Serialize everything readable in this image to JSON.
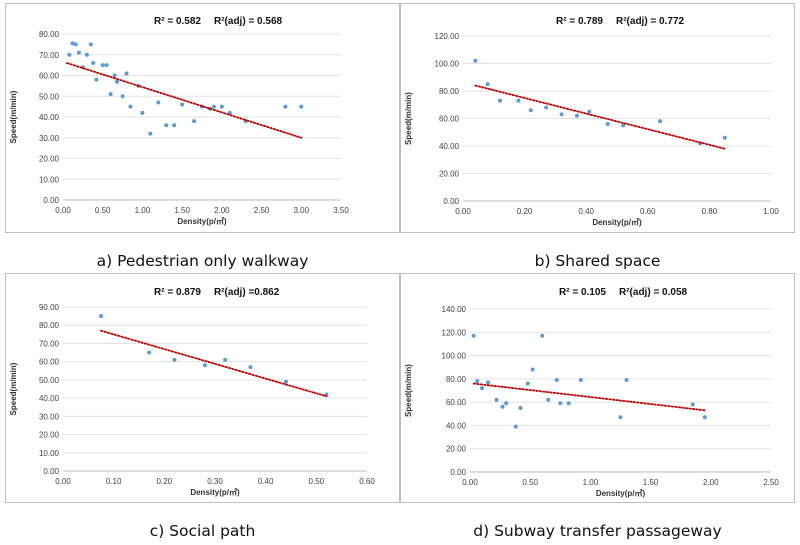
{
  "chart_data": [
    {
      "type": "scatter",
      "caption": "a)  Pedestrian only walkway",
      "r2": "R² = 0.582",
      "r2adj": "R²(adj) = 0.568",
      "xlabel": "Density(p/㎡)",
      "ylabel": "Speed(m/min)",
      "xlim": [
        0,
        3.5
      ],
      "ylim": [
        0,
        80
      ],
      "xticks": [
        "0.00",
        "0.50",
        "1.00",
        "1.50",
        "2.00",
        "2.50",
        "3.00",
        "3.50"
      ],
      "yticks": [
        "0.00",
        "10.00",
        "20.00",
        "30.00",
        "40.00",
        "50.00",
        "60.00",
        "70.00",
        "80.00"
      ],
      "xtick_values": [
        0,
        0.5,
        1,
        1.5,
        2,
        2.5,
        3,
        3.5
      ],
      "ytick_values": [
        0,
        10,
        20,
        30,
        40,
        50,
        60,
        70,
        80
      ],
      "points": [
        [
          0.08,
          70
        ],
        [
          0.12,
          75.5
        ],
        [
          0.16,
          75
        ],
        [
          0.2,
          71
        ],
        [
          0.25,
          64
        ],
        [
          0.3,
          70
        ],
        [
          0.35,
          75
        ],
        [
          0.38,
          66
        ],
        [
          0.42,
          58
        ],
        [
          0.5,
          65
        ],
        [
          0.55,
          65
        ],
        [
          0.6,
          51
        ],
        [
          0.65,
          60
        ],
        [
          0.68,
          57
        ],
        [
          0.75,
          50
        ],
        [
          0.8,
          61
        ],
        [
          0.85,
          45
        ],
        [
          0.95,
          55
        ],
        [
          1.0,
          42
        ],
        [
          1.1,
          32
        ],
        [
          1.2,
          47
        ],
        [
          1.3,
          36
        ],
        [
          1.4,
          36
        ],
        [
          1.5,
          46
        ],
        [
          1.65,
          38
        ],
        [
          1.75,
          45
        ],
        [
          1.85,
          44
        ],
        [
          1.9,
          45
        ],
        [
          2.0,
          45
        ],
        [
          2.1,
          42
        ],
        [
          2.3,
          38
        ],
        [
          2.8,
          45
        ],
        [
          3.0,
          45
        ]
      ],
      "trend": [
        [
          0.05,
          66
        ],
        [
          3.0,
          30
        ]
      ]
    },
    {
      "type": "scatter",
      "caption": "b)  Shared space",
      "r2": "R² = 0.789",
      "r2adj": "R²(adj) = 0.772",
      "xlabel": "Density(p/㎡)",
      "ylabel": "Speed(m/min)",
      "xlim": [
        0,
        1
      ],
      "ylim": [
        0,
        120
      ],
      "xticks": [
        "0.00",
        "0.20",
        "0.40",
        "0.60",
        "0.80",
        "1.00"
      ],
      "yticks": [
        "0.00",
        "20.00",
        "40.00",
        "60.00",
        "80.00",
        "100.00",
        "120.00"
      ],
      "xtick_values": [
        0,
        0.2,
        0.4,
        0.6,
        0.8,
        1.0
      ],
      "ytick_values": [
        0,
        20,
        40,
        60,
        80,
        100,
        120
      ],
      "points": [
        [
          0.04,
          102
        ],
        [
          0.08,
          85
        ],
        [
          0.12,
          73
        ],
        [
          0.18,
          73
        ],
        [
          0.22,
          66
        ],
        [
          0.27,
          68
        ],
        [
          0.32,
          63
        ],
        [
          0.37,
          62
        ],
        [
          0.41,
          65
        ],
        [
          0.47,
          56
        ],
        [
          0.52,
          55
        ],
        [
          0.64,
          58
        ],
        [
          0.77,
          42
        ],
        [
          0.85,
          46
        ]
      ],
      "trend": [
        [
          0.04,
          84
        ],
        [
          0.85,
          38
        ]
      ]
    },
    {
      "type": "scatter",
      "caption": "c)  Social path",
      "r2": "R² = 0.879",
      "r2adj": "R²(adj) =0.862",
      "xlabel": "Density(p/㎡)",
      "ylabel": "Speed(m/min)",
      "xlim": [
        0,
        0.6
      ],
      "ylim": [
        0,
        90
      ],
      "xticks": [
        "0.00",
        "0.10",
        "0.20",
        "0.30",
        "0.40",
        "0.50",
        "0.60"
      ],
      "yticks": [
        "0.00",
        "10.00",
        "20.00",
        "30.00",
        "40.00",
        "50.00",
        "60.00",
        "70.00",
        "80.00",
        "90.00"
      ],
      "xtick_values": [
        0,
        0.1,
        0.2,
        0.3,
        0.4,
        0.5,
        0.6
      ],
      "ytick_values": [
        0,
        10,
        20,
        30,
        40,
        50,
        60,
        70,
        80,
        90
      ],
      "points": [
        [
          0.075,
          85
        ],
        [
          0.17,
          65
        ],
        [
          0.22,
          61
        ],
        [
          0.28,
          58
        ],
        [
          0.32,
          61
        ],
        [
          0.37,
          57
        ],
        [
          0.44,
          49
        ],
        [
          0.52,
          42
        ]
      ],
      "trend": [
        [
          0.075,
          77
        ],
        [
          0.52,
          41
        ]
      ]
    },
    {
      "type": "scatter",
      "caption": "d)  Subway transfer passageway",
      "r2": "R² = 0.105",
      "r2adj": "R²(adj) = 0.058",
      "xlabel": "Density(p/㎡)",
      "ylabel": "Speed(m/min)",
      "xlim": [
        0,
        2.5
      ],
      "ylim": [
        0,
        140
      ],
      "xticks": [
        "0.00",
        "0.50",
        "1.00",
        "1.50",
        "2.00",
        "2.50"
      ],
      "yticks": [
        "0.00",
        "20.00",
        "40.00",
        "60.00",
        "80.00",
        "100.00",
        "120.00",
        "140.00"
      ],
      "xtick_values": [
        0,
        0.5,
        1,
        1.5,
        2,
        2.5
      ],
      "ytick_values": [
        0,
        20,
        40,
        60,
        80,
        100,
        120,
        140
      ],
      "points": [
        [
          0.03,
          117
        ],
        [
          0.06,
          78
        ],
        [
          0.1,
          72
        ],
        [
          0.15,
          77
        ],
        [
          0.22,
          62
        ],
        [
          0.27,
          56
        ],
        [
          0.3,
          59
        ],
        [
          0.38,
          39
        ],
        [
          0.42,
          55
        ],
        [
          0.48,
          76
        ],
        [
          0.52,
          88
        ],
        [
          0.6,
          117
        ],
        [
          0.65,
          62
        ],
        [
          0.72,
          79
        ],
        [
          0.75,
          59
        ],
        [
          0.82,
          59
        ],
        [
          0.92,
          79
        ],
        [
          1.25,
          47
        ],
        [
          1.3,
          79
        ],
        [
          1.85,
          58
        ],
        [
          1.95,
          47
        ]
      ],
      "trend": [
        [
          0.03,
          76
        ],
        [
          1.95,
          53
        ]
      ]
    }
  ]
}
